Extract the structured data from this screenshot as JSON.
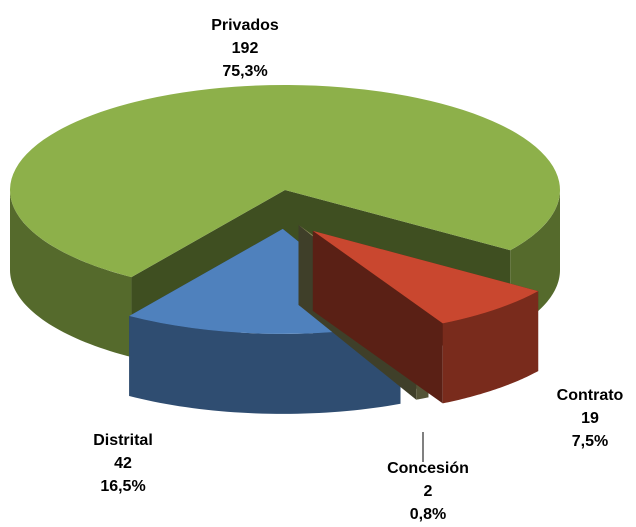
{
  "chart_data": {
    "type": "pie3d",
    "categories": [
      "Contrato",
      "Concesión",
      "Distrital",
      "Privados"
    ],
    "values": [
      19,
      2,
      42,
      192
    ],
    "percentages": [
      7.5,
      0.8,
      16.5,
      75.3
    ],
    "percentage_labels": [
      "7,5%",
      "0,8%",
      "16,5%",
      "75,3%"
    ],
    "colors": [
      "#c9472f",
      "#8c8c5c",
      "#4f81bd",
      "#8db04a"
    ]
  }
}
